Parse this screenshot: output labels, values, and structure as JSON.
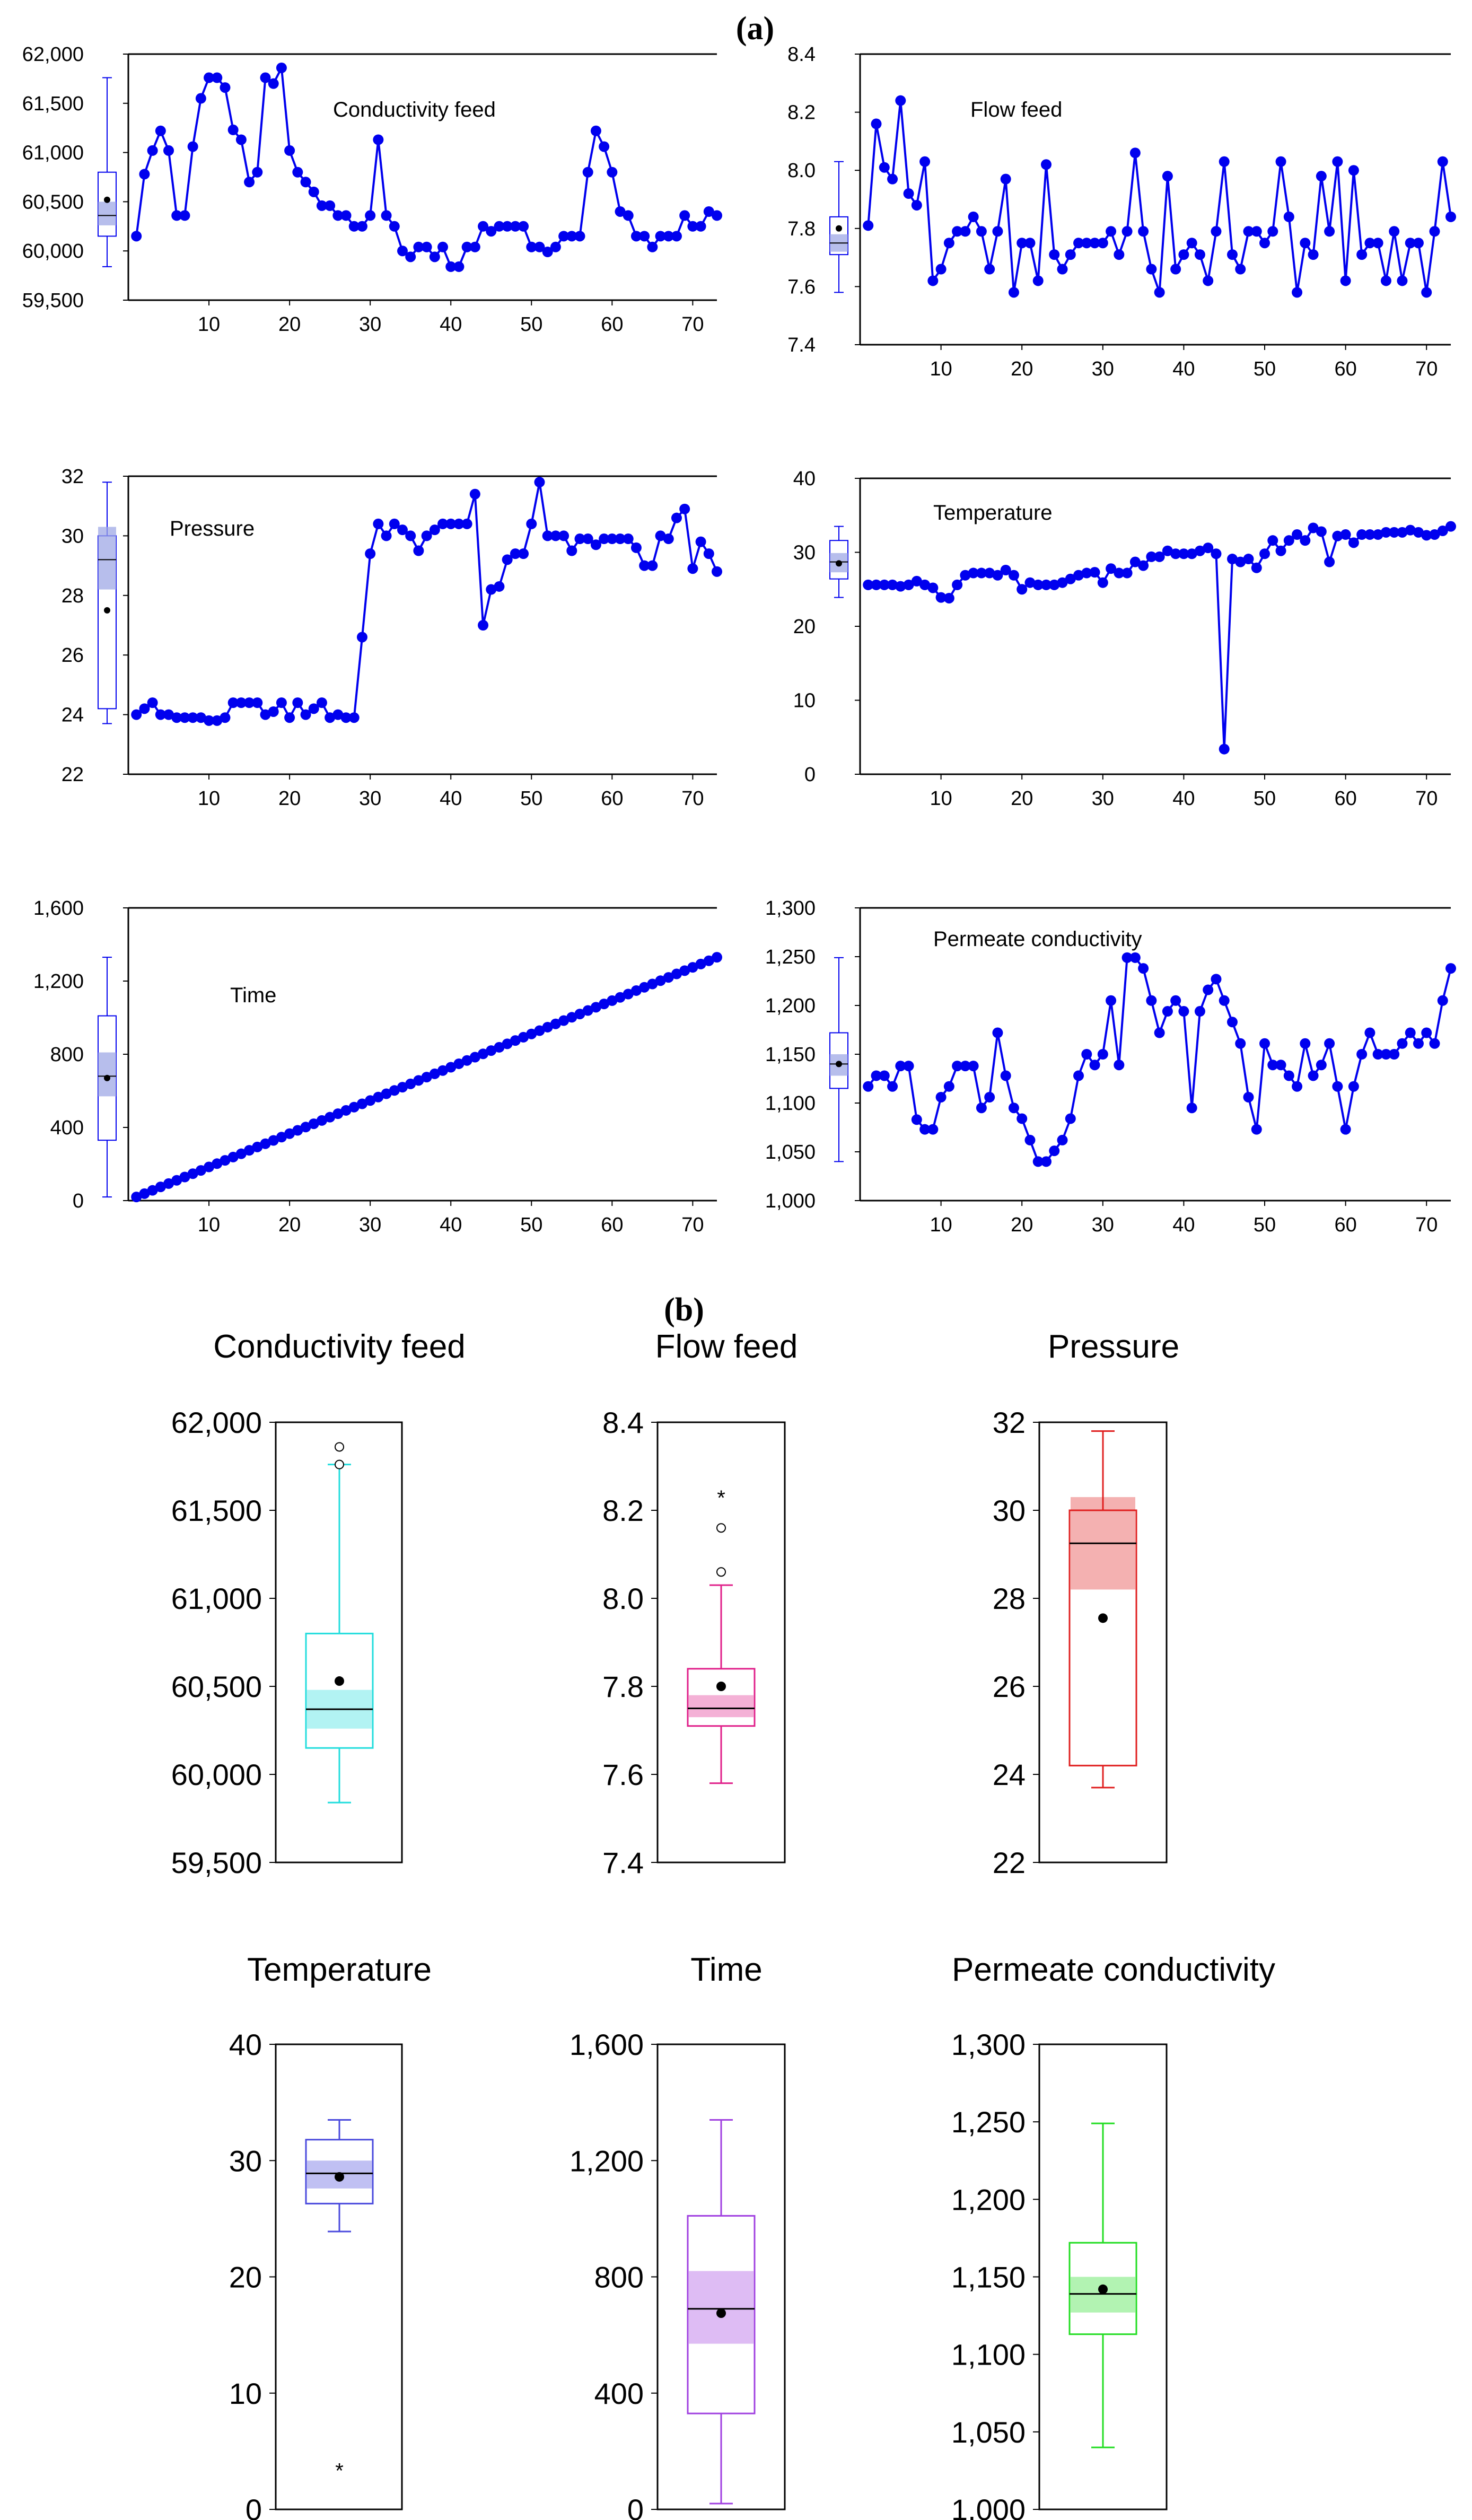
{
  "figure": {
    "label_a": "(a)",
    "label_b": "(b)"
  },
  "colors": {
    "series": "#0000ee",
    "axis": "#000000",
    "text": "#000000"
  },
  "chart_data": [
    {
      "id": "ts-conductivity",
      "type": "line",
      "title": "Conductivity  feed",
      "ylim": [
        59500,
        62000
      ],
      "yticks": [
        59500,
        60000,
        60500,
        61000,
        61500,
        62000
      ],
      "ytick_labels": [
        "59,500",
        "60,000",
        "60,500",
        "61,000",
        "61,500",
        "62,000"
      ],
      "xlim": [
        0,
        73
      ],
      "xticks": [
        10,
        20,
        30,
        40,
        50,
        60,
        70
      ],
      "xtick_labels": [
        "10",
        "20",
        "30",
        "40",
        "50",
        "60",
        "70"
      ],
      "values": [
        60150,
        60780,
        61020,
        61220,
        61020,
        60360,
        60360,
        61060,
        61550,
        61760,
        61760,
        61660,
        61230,
        61130,
        60700,
        60800,
        61760,
        61700,
        61860,
        61020,
        60800,
        60700,
        60600,
        60460,
        60460,
        60360,
        60360,
        60250,
        60250,
        60360,
        61130,
        60360,
        60250,
        60000,
        59940,
        60040,
        60040,
        59940,
        60040,
        59840,
        59840,
        60040,
        60040,
        60250,
        60200,
        60250,
        60250,
        60250,
        60250,
        60040,
        60040,
        59990,
        60040,
        60150,
        60150,
        60150,
        60800,
        61220,
        61060,
        60800,
        60400,
        60360,
        60150,
        60150,
        60040,
        60150,
        60150,
        60150,
        60360,
        60250,
        60250,
        60400,
        60360
      ],
      "box": {
        "min": 59840,
        "q1": 60150,
        "median": 60360,
        "q3": 60800,
        "max": 61760,
        "mean": 60520,
        "ci": [
          60260,
          60500
        ]
      }
    },
    {
      "id": "ts-flow",
      "type": "line",
      "title": "Flow  feed",
      "ylim": [
        7.4,
        8.4
      ],
      "yticks": [
        7.4,
        7.6,
        7.8,
        8.0,
        8.2,
        8.4
      ],
      "ytick_labels": [
        "7.4",
        "7.6",
        "7.8",
        "8.0",
        "8.2",
        "8.4"
      ],
      "xlim": [
        0,
        73
      ],
      "xticks": [
        10,
        20,
        30,
        40,
        50,
        60,
        70
      ],
      "xtick_labels": [
        "10",
        "20",
        "30",
        "40",
        "50",
        "60",
        "70"
      ],
      "values": [
        7.81,
        8.16,
        8.01,
        7.97,
        8.24,
        7.92,
        7.88,
        8.03,
        7.62,
        7.66,
        7.75,
        7.79,
        7.79,
        7.84,
        7.79,
        7.66,
        7.79,
        7.97,
        7.58,
        7.75,
        7.75,
        7.62,
        8.02,
        7.71,
        7.66,
        7.71,
        7.75,
        7.75,
        7.75,
        7.75,
        7.79,
        7.71,
        7.79,
        8.06,
        7.79,
        7.66,
        7.58,
        7.98,
        7.66,
        7.71,
        7.75,
        7.71,
        7.62,
        7.79,
        8.03,
        7.71,
        7.66,
        7.79,
        7.79,
        7.75,
        7.79,
        8.03,
        7.84,
        7.58,
        7.75,
        7.71,
        7.98,
        7.79,
        8.03,
        7.62,
        8.0,
        7.71,
        7.75,
        7.75,
        7.62,
        7.79,
        7.62,
        7.75,
        7.75,
        7.58,
        7.79,
        8.03,
        7.84
      ],
      "box": {
        "min": 7.58,
        "q1": 7.71,
        "median": 7.75,
        "q3": 7.84,
        "max": 8.03,
        "mean": 7.8,
        "ci": [
          7.72,
          7.78
        ]
      }
    },
    {
      "id": "ts-pressure",
      "type": "line",
      "title": "Pressure",
      "ylim": [
        22,
        32
      ],
      "yticks": [
        22,
        24,
        26,
        28,
        30,
        32
      ],
      "ytick_labels": [
        "22",
        "24",
        "26",
        "28",
        "30",
        "32"
      ],
      "xlim": [
        0,
        73
      ],
      "xticks": [
        10,
        20,
        30,
        40,
        50,
        60,
        70
      ],
      "xtick_labels": [
        "10",
        "20",
        "30",
        "40",
        "50",
        "60",
        "70"
      ],
      "values": [
        24.0,
        24.2,
        24.4,
        24.0,
        24.0,
        23.9,
        23.9,
        23.9,
        23.9,
        23.8,
        23.8,
        23.9,
        24.4,
        24.4,
        24.4,
        24.4,
        24.0,
        24.1,
        24.4,
        23.9,
        24.4,
        24.0,
        24.2,
        24.4,
        23.9,
        24.0,
        23.9,
        23.9,
        26.6,
        29.4,
        30.4,
        30.0,
        30.4,
        30.2,
        30.0,
        29.5,
        30.0,
        30.2,
        30.4,
        30.4,
        30.4,
        30.4,
        31.4,
        27.0,
        28.2,
        28.3,
        29.2,
        29.4,
        29.4,
        30.4,
        31.8,
        30.0,
        30.0,
        30.0,
        29.5,
        29.9,
        29.9,
        29.7,
        29.9,
        29.9,
        29.9,
        29.9,
        29.6,
        29.0,
        29.0,
        30.0,
        29.9,
        30.6,
        30.9,
        28.9,
        29.8,
        29.4,
        28.8
      ],
      "box": {
        "min": 23.7,
        "q1": 24.2,
        "median": 29.2,
        "q3": 30.0,
        "max": 31.8,
        "mean": 27.5,
        "ci": [
          28.2,
          30.3
        ]
      }
    },
    {
      "id": "ts-temperature",
      "type": "line",
      "title": "Temperature",
      "ylim": [
        0,
        40
      ],
      "yticks": [
        0,
        10,
        20,
        30,
        40
      ],
      "ytick_labels": [
        "0",
        "10",
        "20",
        "30",
        "40"
      ],
      "xlim": [
        0,
        73
      ],
      "xticks": [
        10,
        20,
        30,
        40,
        50,
        60,
        70
      ],
      "xtick_labels": [
        "10",
        "20",
        "30",
        "40",
        "50",
        "60",
        "70"
      ],
      "values": [
        25.6,
        25.6,
        25.6,
        25.6,
        25.4,
        25.6,
        26.1,
        25.6,
        25.2,
        23.9,
        23.8,
        25.6,
        26.9,
        27.2,
        27.2,
        27.2,
        26.9,
        27.6,
        26.9,
        25.0,
        25.9,
        25.6,
        25.6,
        25.6,
        25.9,
        26.4,
        26.9,
        27.2,
        27.3,
        25.9,
        27.8,
        27.2,
        27.2,
        28.7,
        28.2,
        29.4,
        29.4,
        30.2,
        29.8,
        29.8,
        29.8,
        30.2,
        30.6,
        29.8,
        3.4,
        29.1,
        28.7,
        29.1,
        27.9,
        29.8,
        31.6,
        30.2,
        31.6,
        32.4,
        31.6,
        33.3,
        32.8,
        28.7,
        32.2,
        32.4,
        31.3,
        32.4,
        32.4,
        32.4,
        32.7,
        32.7,
        32.7,
        33.0,
        32.7,
        32.3,
        32.4,
        32.9,
        33.5
      ],
      "box": {
        "min": 23.9,
        "q1": 26.4,
        "median": 28.7,
        "q3": 31.6,
        "max": 33.5,
        "mean": 28.5,
        "ci": [
          27.3,
          29.9
        ]
      }
    },
    {
      "id": "ts-time",
      "type": "line",
      "title": "Time",
      "ylim": [
        0,
        1600
      ],
      "yticks": [
        0,
        400,
        800,
        1200,
        1600
      ],
      "ytick_labels": [
        "0",
        "400",
        "800",
        "1,200",
        "1,600"
      ],
      "xlim": [
        0,
        73
      ],
      "xticks": [
        10,
        20,
        30,
        40,
        50,
        60,
        70
      ],
      "xtick_labels": [
        "10",
        "20",
        "30",
        "40",
        "50",
        "60",
        "70"
      ],
      "values": [
        20,
        38,
        56,
        75,
        93,
        111,
        129,
        147,
        165,
        184,
        202,
        220,
        238,
        256,
        275,
        293,
        311,
        329,
        347,
        366,
        384,
        402,
        420,
        438,
        456,
        475,
        493,
        511,
        529,
        547,
        566,
        584,
        602,
        620,
        638,
        657,
        675,
        693,
        711,
        729,
        748,
        766,
        784,
        802,
        820,
        838,
        857,
        875,
        893,
        911,
        929,
        948,
        966,
        984,
        1002,
        1020,
        1039,
        1057,
        1075,
        1093,
        1111,
        1129,
        1148,
        1166,
        1184,
        1202,
        1220,
        1239,
        1257,
        1275,
        1293,
        1311,
        1330
      ],
      "box": {
        "min": 20,
        "q1": 330,
        "median": 680,
        "q3": 1010,
        "max": 1330,
        "mean": 670,
        "ci": [
          570,
          810
        ]
      }
    },
    {
      "id": "ts-permeate",
      "type": "line",
      "title": "Permeate  conductivity",
      "ylim": [
        1000,
        1300
      ],
      "yticks": [
        1000,
        1050,
        1100,
        1150,
        1200,
        1250,
        1300
      ],
      "ytick_labels": [
        "1,000",
        "1,050",
        "1,100",
        "1,150",
        "1,200",
        "1,250",
        "1,300"
      ],
      "xlim": [
        0,
        73
      ],
      "xticks": [
        10,
        20,
        30,
        40,
        50,
        60,
        70
      ],
      "xtick_labels": [
        "10",
        "20",
        "30",
        "40",
        "50",
        "60",
        "70"
      ],
      "values": [
        1117,
        1128,
        1128,
        1117,
        1138,
        1138,
        1083,
        1073,
        1073,
        1106,
        1117,
        1138,
        1138,
        1138,
        1095,
        1106,
        1172,
        1128,
        1095,
        1084,
        1062,
        1040,
        1040,
        1051,
        1062,
        1084,
        1128,
        1150,
        1139,
        1150,
        1205,
        1139,
        1249,
        1249,
        1238,
        1205,
        1172,
        1194,
        1205,
        1194,
        1095,
        1194,
        1216,
        1227,
        1205,
        1183,
        1161,
        1106,
        1073,
        1161,
        1139,
        1139,
        1128,
        1117,
        1161,
        1128,
        1139,
        1161,
        1117,
        1073,
        1117,
        1150,
        1172,
        1150,
        1150,
        1150,
        1161,
        1172,
        1161,
        1172,
        1161,
        1205,
        1238
      ],
      "box": {
        "min": 1040,
        "q1": 1115,
        "median": 1140,
        "q3": 1172,
        "max": 1249,
        "mean": 1140,
        "ci": [
          1128,
          1150
        ]
      }
    },
    {
      "id": "box-conductivity",
      "type": "box",
      "title": "Conductivity  feed",
      "color": "#22dddd",
      "ylim": [
        59500,
        62000
      ],
      "yticks": [
        59500,
        60000,
        60500,
        61000,
        61500,
        62000
      ],
      "ytick_labels": [
        "59,500",
        "60,000",
        "60,500",
        "61,000",
        "61,500",
        "62,000"
      ],
      "min": 59840,
      "q1": 60150,
      "median": 60370,
      "q3": 60800,
      "max": 61760,
      "mean": 60530,
      "ci": [
        60260,
        60480
      ],
      "outliers": [
        61760,
        61860
      ],
      "extremes": []
    },
    {
      "id": "box-flow",
      "type": "box",
      "title": "Flow  feed",
      "color": "#e0208a",
      "ylim": [
        7.4,
        8.4
      ],
      "yticks": [
        7.4,
        7.6,
        7.8,
        8.0,
        8.2,
        8.4
      ],
      "ytick_labels": [
        "7.4",
        "7.6",
        "7.8",
        "8.0",
        "8.2",
        "8.4"
      ],
      "min": 7.58,
      "q1": 7.71,
      "median": 7.75,
      "q3": 7.84,
      "max": 8.03,
      "mean": 7.8,
      "ci": [
        7.73,
        7.78
      ],
      "outliers": [
        8.06,
        8.16
      ],
      "extremes": [
        8.23
      ]
    },
    {
      "id": "box-pressure",
      "type": "box",
      "title": "Pressure",
      "color": "#e02020",
      "ylim": [
        22,
        32
      ],
      "yticks": [
        22,
        24,
        26,
        28,
        30,
        32
      ],
      "ytick_labels": [
        "22",
        "24",
        "26",
        "28",
        "30",
        "32"
      ],
      "min": 23.7,
      "q1": 24.2,
      "median": 29.25,
      "q3": 30.0,
      "max": 31.8,
      "mean": 27.55,
      "ci": [
        28.2,
        30.3
      ],
      "outliers": [],
      "extremes": []
    },
    {
      "id": "box-temperature",
      "type": "box",
      "title": "Temperature",
      "color": "#4a4add",
      "ylim": [
        0,
        40
      ],
      "yticks": [
        0,
        10,
        20,
        30,
        40
      ],
      "ytick_labels": [
        "0",
        "10",
        "20",
        "30",
        "40"
      ],
      "min": 23.9,
      "q1": 26.3,
      "median": 28.9,
      "q3": 31.8,
      "max": 33.5,
      "mean": 28.6,
      "ci": [
        27.6,
        30.0
      ],
      "outliers": [],
      "extremes": [
        3.4
      ]
    },
    {
      "id": "box-time",
      "type": "box",
      "title": "Time",
      "color": "#a040e0",
      "ylim": [
        0,
        1600
      ],
      "yticks": [
        0,
        400,
        800,
        1200,
        1600
      ],
      "ytick_labels": [
        "0",
        "400",
        "800",
        "1,200",
        "1,600"
      ],
      "min": 20,
      "q1": 330,
      "median": 690,
      "q3": 1010,
      "max": 1340,
      "mean": 675,
      "ci": [
        570,
        820
      ],
      "outliers": [],
      "extremes": []
    },
    {
      "id": "box-permeate",
      "type": "box",
      "title": "Permeate  conductivity",
      "color": "#22dd22",
      "ylim": [
        1000,
        1300
      ],
      "yticks": [
        1000,
        1050,
        1100,
        1150,
        1200,
        1250,
        1300
      ],
      "ytick_labels": [
        "1,000",
        "1,050",
        "1,100",
        "1,150",
        "1,200",
        "1,250",
        "1,300"
      ],
      "min": 1040,
      "q1": 1113,
      "median": 1139,
      "q3": 1172,
      "max": 1249,
      "mean": 1142,
      "ci": [
        1127,
        1150
      ],
      "outliers": [],
      "extremes": []
    }
  ]
}
